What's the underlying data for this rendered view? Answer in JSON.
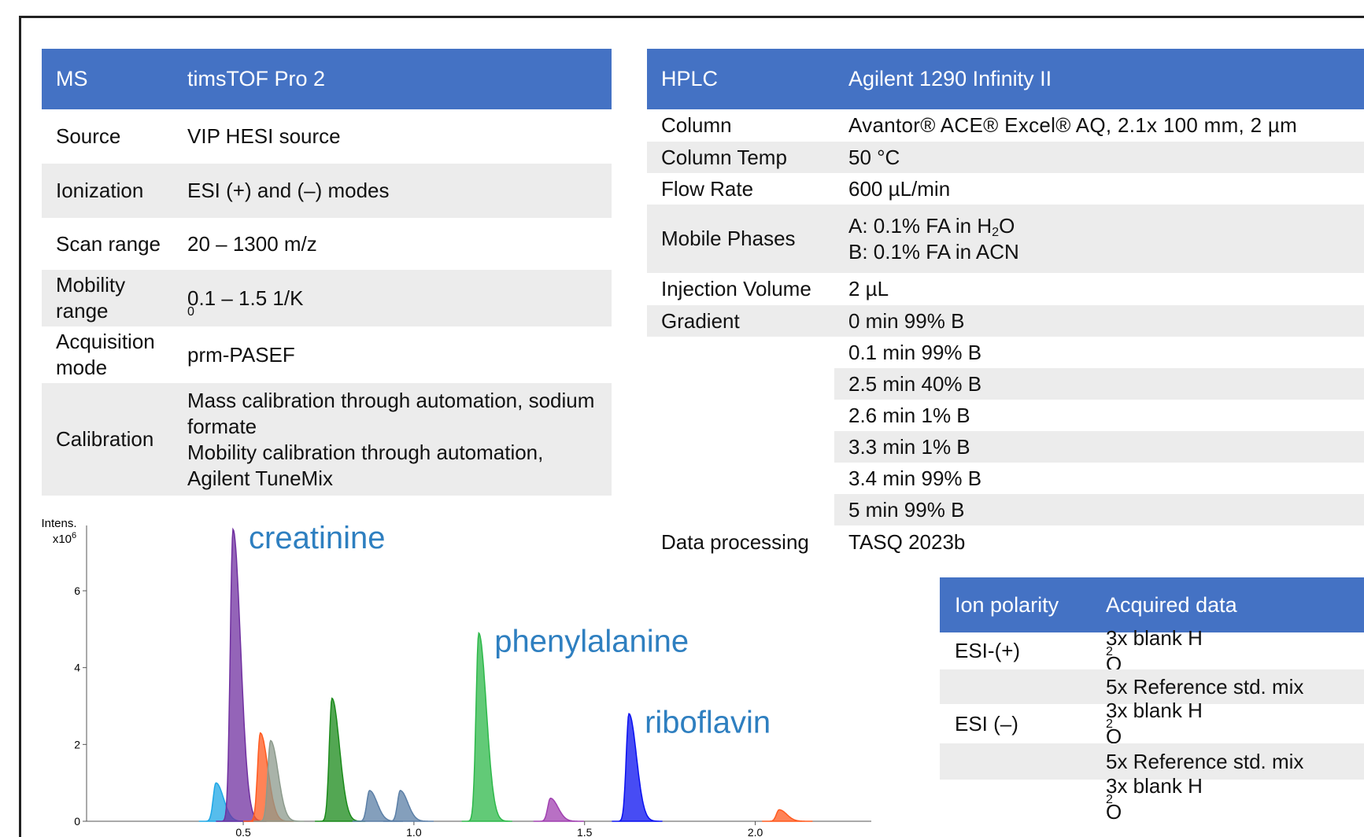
{
  "ms_table": {
    "header": [
      "MS",
      "timsTOF Pro 2"
    ],
    "rows": [
      [
        "Source",
        "VIP HESI source"
      ],
      [
        "Ionization",
        "ESI (+) and (–) modes"
      ],
      [
        "Scan range",
        "20 – 1300 m/z"
      ],
      [
        "Mobility range",
        [
          "0.1 – 1.5 1/K",
          {
            "sub": "0"
          }
        ]
      ],
      [
        "Acquisition mode",
        "prm-PASEF"
      ],
      [
        "Calibration",
        {
          "lines": [
            "Mass calibration through automation, sodium formate",
            "Mobility calibration through automation, Agilent TuneMix"
          ]
        }
      ]
    ]
  },
  "hplc_table": {
    "header": [
      "HPLC",
      "Agilent 1290 Infinity II"
    ],
    "rows": [
      [
        "Column",
        "Avantor® ACE® Excel® AQ, 2.1x 100 mm, 2 µm"
      ],
      [
        "Column Temp",
        "50 °C"
      ],
      [
        "Flow Rate",
        "600 µL/min"
      ],
      [
        "Mobile Phases",
        {
          "lines": [
            [
              "A: 0.1% FA in H",
              {
                "sub": "2"
              },
              "O"
            ],
            "B: 0.1% FA in ACN"
          ]
        }
      ],
      [
        "Injection Volume",
        "2 µL"
      ],
      [
        "Gradient",
        "0 min 99% B"
      ],
      [
        null,
        "0.1 min 99% B"
      ],
      [
        null,
        "2.5 min 40% B"
      ],
      [
        null,
        "2.6 min 1% B"
      ],
      [
        null,
        "3.3 min 1% B"
      ],
      [
        null,
        "3.4 min 99% B"
      ],
      [
        null,
        "5 min 99% B"
      ],
      [
        "Data processing",
        "TASQ 2023b"
      ]
    ]
  },
  "ion_table": {
    "header": [
      "Ion polarity",
      "Acquired data"
    ],
    "rows": [
      [
        "ESI-(+)",
        [
          "3x blank H",
          {
            "sub": "2"
          },
          "O"
        ]
      ],
      [
        null,
        "5x Reference std. mix"
      ],
      [
        "ESI (–)",
        [
          "3x blank H",
          {
            "sub": "2"
          },
          "O"
        ]
      ],
      [
        null,
        "5x Reference std. mix"
      ],
      [
        null,
        [
          "3x blank H",
          {
            "sub": "2"
          },
          "O"
        ]
      ]
    ]
  },
  "chromatogram": {
    "y_label": "Intens.",
    "y_multiplier": [
      "x10",
      {
        "sup": "6"
      }
    ],
    "xlim": [
      0.041,
      2.34
    ],
    "ylim": [
      0,
      7.7
    ],
    "xticks": [
      0.5,
      {
        "value": 1,
        "label": "1.0"
      },
      1.5,
      {
        "value": 2,
        "label": "2.0"
      }
    ],
    "yticks": [
      0,
      2,
      4,
      6
    ],
    "peaks": [
      {
        "x": 0.42,
        "height": 1.0,
        "color": "#1ea7e6"
      },
      {
        "x": 0.47,
        "height": 7.6,
        "color": "#7030a0",
        "label": "creatinine"
      },
      {
        "x": 0.55,
        "height": 2.3,
        "color": "#ff5a1f"
      },
      {
        "x": 0.58,
        "height": 2.1,
        "color": "#8c9a8c"
      },
      {
        "x": 0.76,
        "height": 3.2,
        "color": "#1a8a1a"
      },
      {
        "x": 0.87,
        "height": 0.8,
        "color": "#5b7fa6"
      },
      {
        "x": 0.96,
        "height": 0.8,
        "color": "#5b7fa6"
      },
      {
        "x": 1.19,
        "height": 4.9,
        "color": "#2db84a",
        "label": "phenylalanine"
      },
      {
        "x": 1.4,
        "height": 0.6,
        "color": "#a040b0"
      },
      {
        "x": 1.63,
        "height": 2.8,
        "color": "#0a10f0",
        "label": "riboflavin"
      },
      {
        "x": 2.07,
        "height": 0.3,
        "color": "#ff5a1f"
      }
    ]
  }
}
